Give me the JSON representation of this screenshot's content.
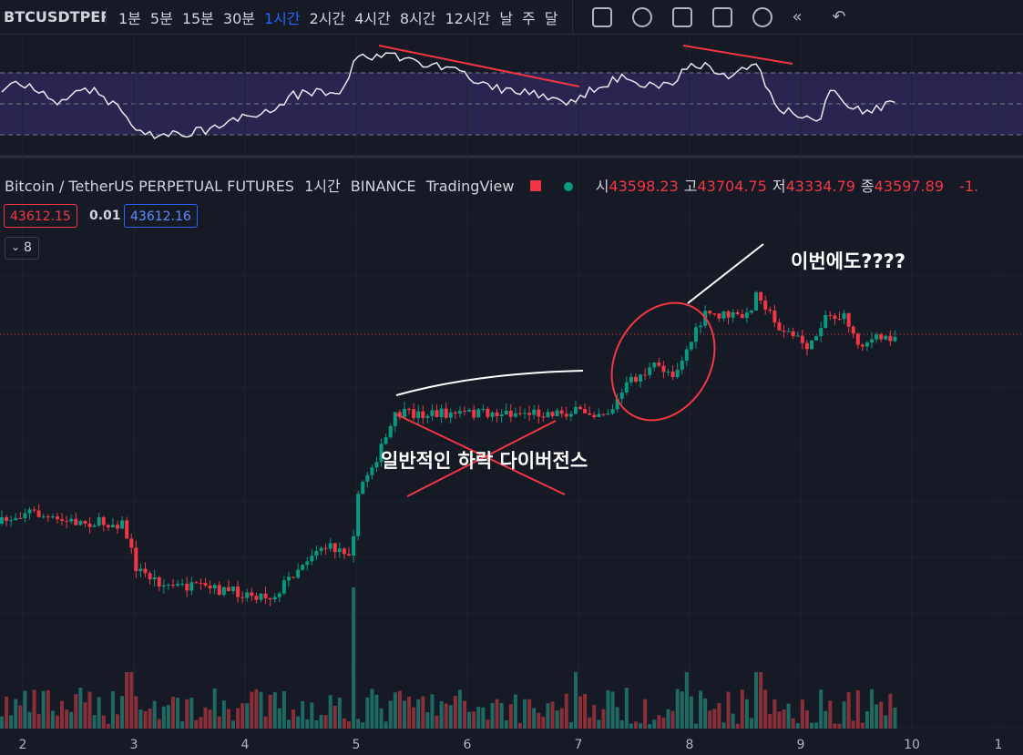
{
  "toolbar": {
    "symbol": "BTCUSDTPER",
    "intervals": [
      "1분",
      "5분",
      "15분",
      "30분",
      "1시간",
      "2시간",
      "4시간",
      "8시간",
      "12시간",
      "날",
      "주",
      "달"
    ]
  },
  "legend": {
    "title": "Bitcoin / TetherUS PERPETUAL FUTURES",
    "interval": "1시간",
    "exchange": "BINANCE",
    "source": "TradingView",
    "ohlc": [
      {
        "label": "시",
        "value": 43598.23
      },
      {
        "label": "고",
        "value": 43704.75
      },
      {
        "label": "저",
        "value": 43334.79
      },
      {
        "label": "종",
        "value": 43597.89
      }
    ],
    "change": "-1."
  },
  "price_boxes": {
    "bid": 43612.15,
    "spread": 0.01,
    "ask": 43612.16
  },
  "indicator_count": 8,
  "annotations": [
    "일반적인 하락 다이버전스",
    "이번에도????"
  ],
  "x_axis": [
    2,
    3,
    4,
    5,
    6,
    7,
    8,
    9,
    10,
    1
  ]
}
